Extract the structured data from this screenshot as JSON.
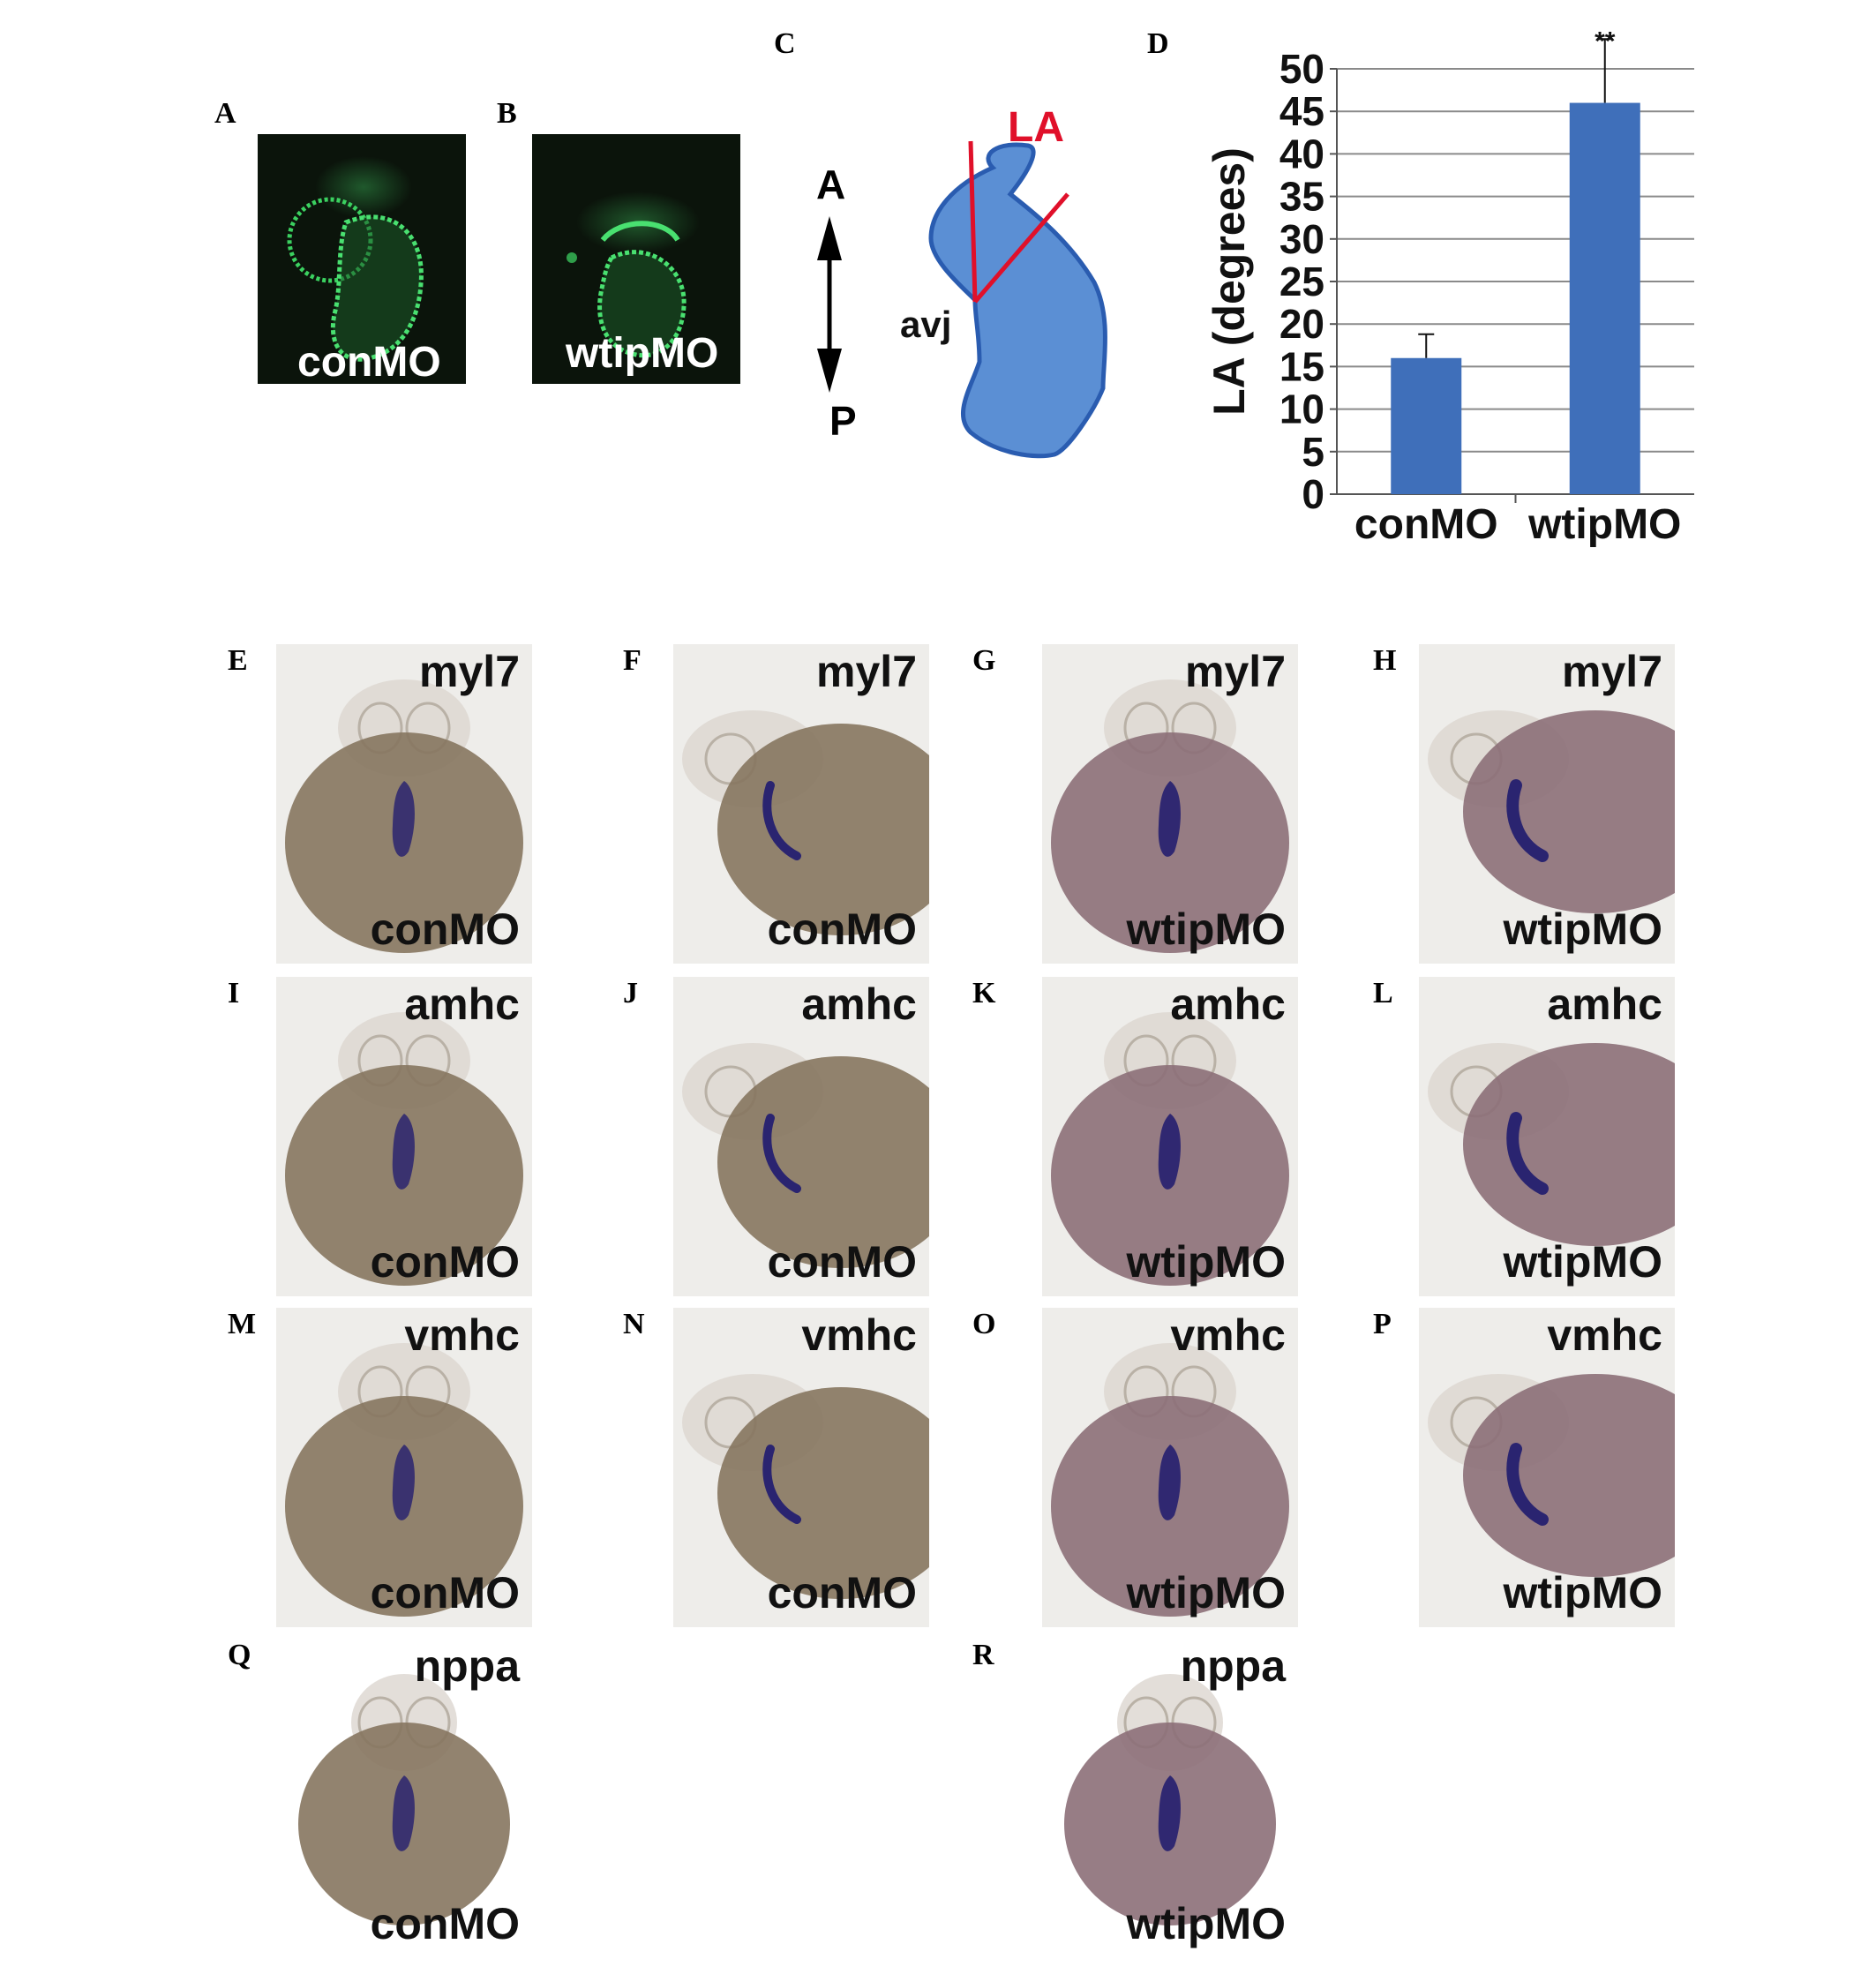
{
  "panel_letters": {
    "A": "A",
    "B": "B",
    "C": "C",
    "D": "D",
    "E": "E",
    "F": "F",
    "G": "G",
    "H": "H",
    "I": "I",
    "J": "J",
    "K": "K",
    "L": "L",
    "M": "M",
    "N": "N",
    "O": "O",
    "P": "P",
    "Q": "Q",
    "R": "R"
  },
  "fluorescence": {
    "A": {
      "label": "conMO"
    },
    "B": {
      "label": "wtipMO"
    }
  },
  "schematic": {
    "axis_top": "A",
    "axis_bottom": "P",
    "angle_label": "LA",
    "junction_label": "avj",
    "colors": {
      "heart_fill": "#5b8fd4",
      "heart_stroke": "#2a5cb0",
      "angle_lines": "#e0102a"
    }
  },
  "chart_data": {
    "type": "bar",
    "categories": [
      "conMO",
      "wtipMO"
    ],
    "values": [
      16,
      46
    ],
    "errors": [
      2.8,
      7.5
    ],
    "ylabel": "LA (degrees)",
    "ylim": [
      0,
      50
    ],
    "yticks": [
      0,
      5,
      10,
      15,
      20,
      25,
      30,
      35,
      40,
      45,
      50
    ],
    "grid": true,
    "annotations": [
      "**"
    ],
    "bar_color": "#3f6fba"
  },
  "ish_panels": [
    {
      "id": "E",
      "probe": "myl7",
      "condition": "conMO",
      "view": "ventral"
    },
    {
      "id": "F",
      "probe": "myl7",
      "condition": "conMO",
      "view": "lateral"
    },
    {
      "id": "G",
      "probe": "myl7",
      "condition": "wtipMO",
      "view": "ventral"
    },
    {
      "id": "H",
      "probe": "myl7",
      "condition": "wtipMO",
      "view": "lateral"
    },
    {
      "id": "I",
      "probe": "amhc",
      "condition": "conMO",
      "view": "ventral"
    },
    {
      "id": "J",
      "probe": "amhc",
      "condition": "conMO",
      "view": "lateral"
    },
    {
      "id": "K",
      "probe": "amhc",
      "condition": "wtipMO",
      "view": "ventral"
    },
    {
      "id": "L",
      "probe": "amhc",
      "condition": "wtipMO",
      "view": "lateral"
    },
    {
      "id": "M",
      "probe": "vmhc",
      "condition": "conMO",
      "view": "ventral"
    },
    {
      "id": "N",
      "probe": "vmhc",
      "condition": "conMO",
      "view": "lateral"
    },
    {
      "id": "O",
      "probe": "vmhc",
      "condition": "wtipMO",
      "view": "ventral"
    },
    {
      "id": "P",
      "probe": "vmhc",
      "condition": "wtipMO",
      "view": "lateral"
    },
    {
      "id": "Q",
      "probe": "nppa",
      "condition": "conMO",
      "view": "ventral"
    },
    {
      "id": "R",
      "probe": "nppa",
      "condition": "wtipMO",
      "view": "ventral"
    }
  ]
}
